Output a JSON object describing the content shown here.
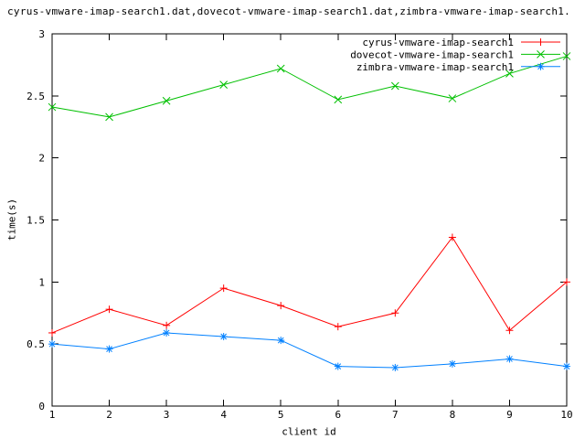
{
  "chart_data": {
    "type": "line",
    "title": "cyrus-vmware-imap-search1.dat,dovecot-vmware-imap-search1.dat,zimbra-vmware-imap-search1.",
    "xlabel": "client id",
    "ylabel": "time(s)",
    "x": [
      1,
      2,
      3,
      4,
      5,
      6,
      7,
      8,
      9,
      10
    ],
    "series": [
      {
        "name": "cyrus-vmware-imap-search1",
        "color": "#ff0000",
        "marker": "plus",
        "values": [
          0.59,
          0.78,
          0.65,
          0.95,
          0.81,
          0.64,
          0.75,
          1.36,
          0.61,
          1.0
        ]
      },
      {
        "name": "dovecot-vmware-imap-search1",
        "color": "#00c000",
        "marker": "cross",
        "values": [
          2.41,
          2.33,
          2.46,
          2.59,
          2.72,
          2.47,
          2.58,
          2.48,
          2.68,
          2.82
        ]
      },
      {
        "name": "zimbra-vmware-imap-search1",
        "color": "#0080ff",
        "marker": "asterisk",
        "values": [
          0.5,
          0.46,
          0.59,
          0.56,
          0.53,
          0.32,
          0.31,
          0.34,
          0.38,
          0.32
        ]
      }
    ],
    "xlim": [
      1,
      10
    ],
    "ylim": [
      0,
      3
    ],
    "xticks": [
      1,
      2,
      3,
      4,
      5,
      6,
      7,
      8,
      9,
      10
    ],
    "xtick_labels": [
      "1",
      "2",
      "3",
      "4",
      "5",
      "6",
      "7",
      "8",
      "9",
      "10"
    ],
    "yticks": [
      0,
      0.5,
      1,
      1.5,
      2,
      2.5,
      3
    ],
    "ytick_labels": [
      "0",
      "0.5",
      "1",
      "1.5",
      "2",
      "2.5",
      "3"
    ],
    "legend_position": "top-right-inside",
    "grid": false,
    "axis_color": "#000000",
    "text_color": "#000000",
    "background_color": "#ffffff"
  }
}
